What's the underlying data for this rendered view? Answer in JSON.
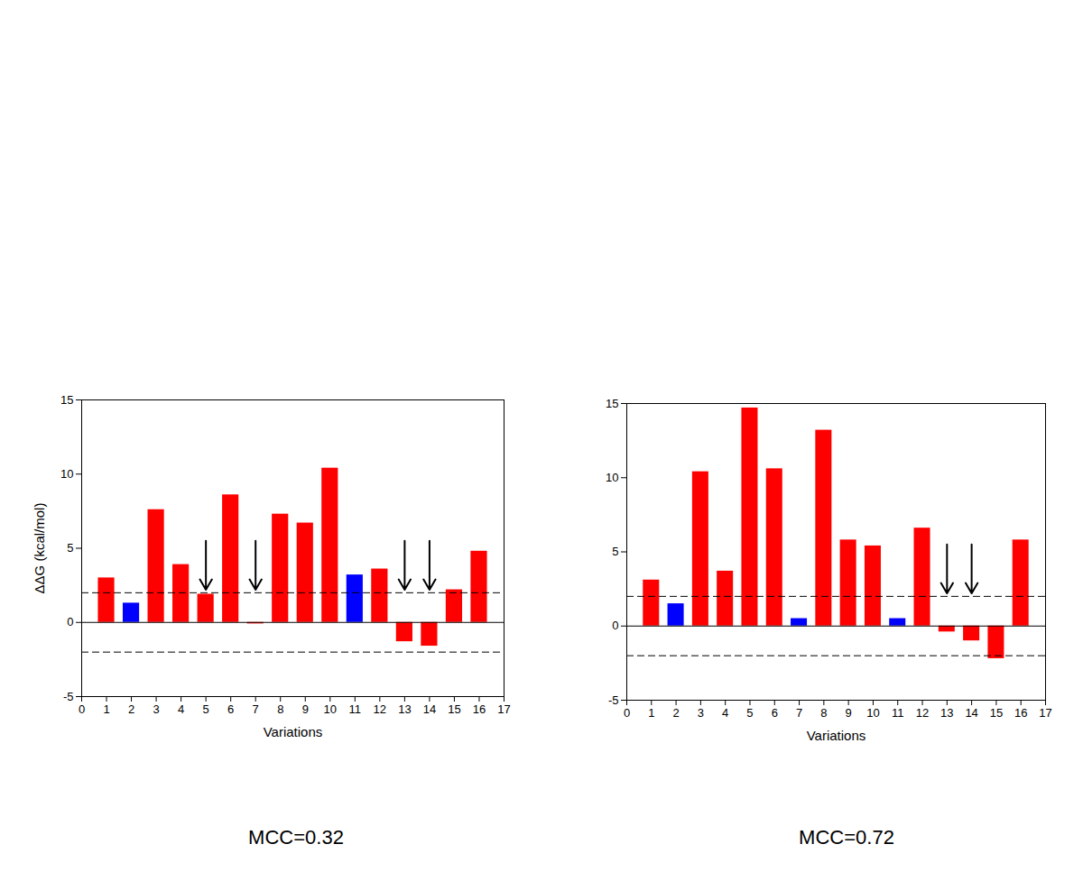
{
  "chart_data": [
    {
      "type": "bar",
      "ylabel": "ΔΔG (kcal/mol)",
      "xlabel": "Variations",
      "annotation": "MCC=0.32",
      "x": [
        1,
        2,
        3,
        4,
        5,
        6,
        7,
        8,
        9,
        10,
        11,
        12,
        13,
        14,
        15,
        16
      ],
      "values": [
        3.0,
        1.3,
        7.6,
        3.9,
        1.9,
        8.6,
        -0.1,
        7.3,
        6.7,
        10.4,
        3.2,
        3.6,
        -1.3,
        -1.6,
        2.2,
        4.8
      ],
      "colors": [
        "#ff0000",
        "#0000ff",
        "#ff0000",
        "#ff0000",
        "#ff0000",
        "#ff0000",
        "#ff0000",
        "#ff0000",
        "#ff0000",
        "#ff0000",
        "#0000ff",
        "#ff0000",
        "#ff0000",
        "#ff0000",
        "#ff0000",
        "#ff0000"
      ],
      "thresholds": [
        2,
        -2
      ],
      "arrows": [
        {
          "x": 5,
          "y1": 5.5,
          "y2": 2.2
        },
        {
          "x": 7,
          "y1": 5.5,
          "y2": 2.2
        },
        {
          "x": 13,
          "y1": 5.5,
          "y2": 2.2
        },
        {
          "x": 14,
          "y1": 5.5,
          "y2": 2.2
        }
      ],
      "xlim": [
        0,
        17
      ],
      "xticks": [
        0,
        1,
        2,
        3,
        4,
        5,
        6,
        7,
        8,
        9,
        10,
        11,
        12,
        13,
        14,
        15,
        16,
        17
      ],
      "ylim": [
        -5,
        15
      ],
      "yticks": [
        -5,
        0,
        5,
        10,
        15
      ]
    },
    {
      "type": "bar",
      "xlabel": "Variations",
      "annotation": "MCC=0.72",
      "x": [
        1,
        2,
        3,
        4,
        5,
        6,
        7,
        8,
        9,
        10,
        11,
        12,
        13,
        14,
        15,
        16
      ],
      "values": [
        3.1,
        1.5,
        10.4,
        3.7,
        14.7,
        10.6,
        0.5,
        13.2,
        5.8,
        5.4,
        0.5,
        6.6,
        -0.4,
        -1.0,
        -2.2,
        5.8
      ],
      "colors": [
        "#ff0000",
        "#0000ff",
        "#ff0000",
        "#ff0000",
        "#ff0000",
        "#ff0000",
        "#0000ff",
        "#ff0000",
        "#ff0000",
        "#ff0000",
        "#0000ff",
        "#ff0000",
        "#ff0000",
        "#ff0000",
        "#ff0000",
        "#ff0000"
      ],
      "thresholds": [
        2,
        -2
      ],
      "arrows": [
        {
          "x": 13,
          "y1": 5.5,
          "y2": 2.2
        },
        {
          "x": 14,
          "y1": 5.5,
          "y2": 2.2
        }
      ],
      "xlim": [
        0,
        17
      ],
      "xticks": [
        0,
        1,
        2,
        3,
        4,
        5,
        6,
        7,
        8,
        9,
        10,
        11,
        12,
        13,
        14,
        15,
        16,
        17
      ],
      "ylim": [
        -5,
        15
      ],
      "yticks": [
        -5,
        0,
        5,
        10,
        15
      ]
    }
  ]
}
